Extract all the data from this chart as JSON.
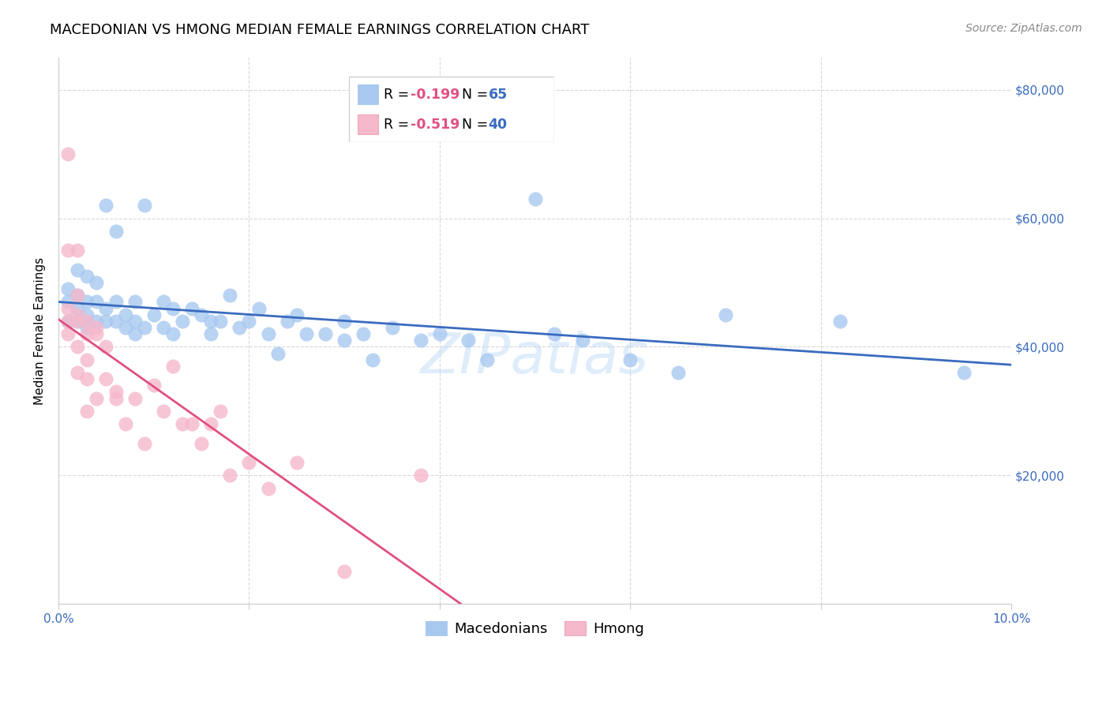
{
  "title": "MACEDONIAN VS HMONG MEDIAN FEMALE EARNINGS CORRELATION CHART",
  "source": "Source: ZipAtlas.com",
  "ylabel": "Median Female Earnings",
  "xlim": [
    0.0,
    0.1
  ],
  "ylim": [
    0,
    85000
  ],
  "xtick_positions": [
    0.0,
    0.02,
    0.04,
    0.06,
    0.08,
    0.1
  ],
  "ytick_positions": [
    0,
    20000,
    40000,
    60000,
    80000
  ],
  "ytick_labels_right": [
    "",
    "$20,000",
    "$40,000",
    "$60,000",
    "$80,000"
  ],
  "macedonian_color": "#a8c8f0",
  "hmong_color": "#f5b8cb",
  "macedonian_line_color": "#3a6bbf",
  "hmong_line_color": "#e05080",
  "watermark": "ZIPatlas",
  "legend_R_color": "#e05080",
  "legend_N_color": "#3a6bbf",
  "legend_R_mac": "-0.199",
  "legend_N_mac": "65",
  "legend_R_hmong": "-0.519",
  "legend_N_hmong": "40",
  "macedonian_x": [
    0.001,
    0.001,
    0.001,
    0.002,
    0.002,
    0.002,
    0.002,
    0.003,
    0.003,
    0.003,
    0.003,
    0.004,
    0.004,
    0.004,
    0.005,
    0.005,
    0.005,
    0.006,
    0.006,
    0.006,
    0.007,
    0.007,
    0.008,
    0.008,
    0.008,
    0.009,
    0.009,
    0.01,
    0.011,
    0.011,
    0.012,
    0.012,
    0.013,
    0.014,
    0.015,
    0.016,
    0.016,
    0.017,
    0.018,
    0.019,
    0.02,
    0.021,
    0.022,
    0.023,
    0.024,
    0.025,
    0.026,
    0.028,
    0.03,
    0.03,
    0.032,
    0.033,
    0.035,
    0.038,
    0.04,
    0.043,
    0.045,
    0.05,
    0.052,
    0.055,
    0.06,
    0.065,
    0.07,
    0.082,
    0.095
  ],
  "macedonian_y": [
    47000,
    44000,
    49000,
    46000,
    48000,
    44000,
    52000,
    45000,
    47000,
    51000,
    43000,
    44000,
    47000,
    50000,
    44000,
    46000,
    62000,
    44000,
    47000,
    58000,
    43000,
    45000,
    44000,
    47000,
    42000,
    43000,
    62000,
    45000,
    43000,
    47000,
    42000,
    46000,
    44000,
    46000,
    45000,
    42000,
    44000,
    44000,
    48000,
    43000,
    44000,
    46000,
    42000,
    39000,
    44000,
    45000,
    42000,
    42000,
    41000,
    44000,
    42000,
    38000,
    43000,
    41000,
    42000,
    41000,
    38000,
    63000,
    42000,
    41000,
    38000,
    36000,
    45000,
    44000,
    36000
  ],
  "hmong_x": [
    0.001,
    0.001,
    0.001,
    0.001,
    0.001,
    0.002,
    0.002,
    0.002,
    0.002,
    0.002,
    0.002,
    0.003,
    0.003,
    0.003,
    0.003,
    0.003,
    0.004,
    0.004,
    0.004,
    0.005,
    0.005,
    0.006,
    0.006,
    0.007,
    0.008,
    0.009,
    0.01,
    0.011,
    0.012,
    0.013,
    0.014,
    0.015,
    0.016,
    0.017,
    0.018,
    0.02,
    0.022,
    0.025,
    0.03,
    0.038
  ],
  "hmong_y": [
    46000,
    44000,
    55000,
    42000,
    70000,
    45000,
    48000,
    44000,
    40000,
    36000,
    55000,
    44000,
    42000,
    38000,
    35000,
    30000,
    43000,
    42000,
    32000,
    40000,
    35000,
    33000,
    32000,
    28000,
    32000,
    25000,
    34000,
    30000,
    37000,
    28000,
    28000,
    25000,
    28000,
    30000,
    20000,
    22000,
    18000,
    22000,
    5000,
    20000
  ],
  "title_fontsize": 13,
  "axis_label_fontsize": 11,
  "tick_fontsize": 11,
  "legend_fontsize": 13,
  "background_color": "#ffffff",
  "grid_color": "#d8d8d8",
  "axis_color": "#cccccc"
}
